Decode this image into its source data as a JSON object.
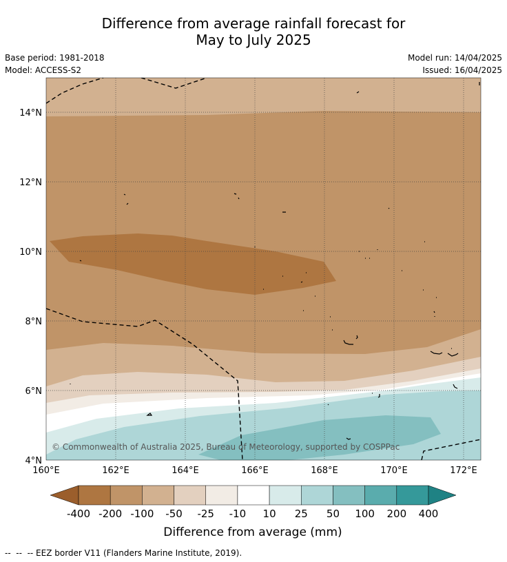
{
  "title": {
    "line1": "Difference from average rainfall forecast for",
    "line2": "May to July 2025"
  },
  "meta": {
    "base_period": "Base period: 1981-2018",
    "model": "Model: ACCESS-S2",
    "model_run": "Model run: 14/04/2025",
    "issued": "Issued: 16/04/2025"
  },
  "map": {
    "latitude_ticks": [
      "14°N",
      "12°N",
      "10°N",
      "8°N",
      "6°N",
      "4°N"
    ],
    "longitude_ticks": [
      "160°E",
      "162°E",
      "164°E",
      "166°E",
      "168°E",
      "170°E",
      "172°E"
    ],
    "copyright": "© Commonwealth of Australia 2025, Bureau of Meteorology, supported by COSPPac"
  },
  "colorbar": {
    "label": "Difference from average (mm)",
    "ticks": [
      "-400",
      "-200",
      "-100",
      "-50",
      "-25",
      "-10",
      "10",
      "25",
      "50",
      "100",
      "200",
      "400"
    ],
    "colors": [
      "#9b5e2c",
      "#ae7641",
      "#c09468",
      "#d2b190",
      "#e3d0bf",
      "#f2ece5",
      "#ffffff",
      "#d8ebea",
      "#aed6d7",
      "#84bfc0",
      "#5aacad",
      "#35999a",
      "#1f8284"
    ]
  },
  "footnote": "--  --  -- EEZ border V11 (Flanders Marine Institute, 2019)."
}
